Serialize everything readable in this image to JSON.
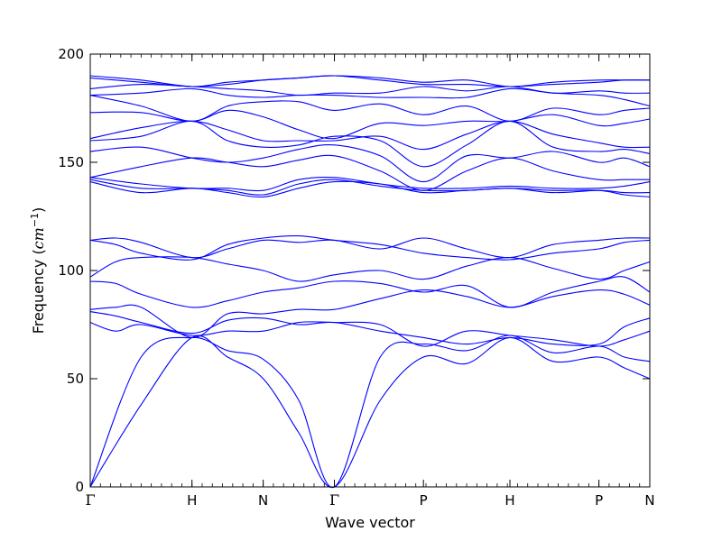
{
  "chart_data": {
    "type": "line",
    "title": "",
    "xlabel": "Wave vector",
    "ylabel": "Frequency",
    "ylabel_unit_base": "cm",
    "ylabel_unit_exp": "−1",
    "ylim": [
      0,
      200
    ],
    "yticks": [
      0,
      50,
      100,
      150,
      200
    ],
    "xlim": [
      0,
      11
    ],
    "x_ticks": [
      {
        "x": 0,
        "label": "Γ"
      },
      {
        "x": 2,
        "label": "H"
      },
      {
        "x": 3.4,
        "label": "N"
      },
      {
        "x": 4.8,
        "label": "Γ"
      },
      {
        "x": 6.55,
        "label": "P"
      },
      {
        "x": 8.25,
        "label": "H"
      },
      {
        "x": 10,
        "label": "P"
      },
      {
        "x": 11,
        "label": "N"
      }
    ],
    "grid": false,
    "legend": "none",
    "line_color": "#0000ff",
    "series": [
      {
        "x": [
          0,
          1,
          2,
          2.7,
          3.4,
          4.1,
          4.8,
          5.7,
          6.55,
          7.4,
          8.25,
          9.1,
          10,
          10.5,
          11
        ],
        "values": [
          0,
          38,
          69,
          60,
          50,
          25,
          0,
          40,
          60,
          57,
          69,
          58,
          60,
          55,
          50
        ]
      },
      {
        "x": [
          0,
          1,
          2,
          2.7,
          3.4,
          4.1,
          4.8,
          5.7,
          6.55,
          7.4,
          8.25,
          9.1,
          10,
          10.5,
          11
        ],
        "values": [
          0,
          60,
          69,
          63,
          59,
          40,
          0,
          60,
          66,
          63,
          70,
          62,
          65,
          60,
          58
        ]
      },
      {
        "x": [
          0,
          0.5,
          1,
          2,
          2.7,
          3.4,
          4.1,
          4.8,
          5.7,
          6.55,
          7.4,
          8.25,
          9.1,
          10,
          10.5,
          11
        ],
        "values": [
          76,
          72,
          75,
          70,
          72,
          72,
          76,
          76,
          75,
          65,
          72,
          70,
          68,
          65,
          68,
          72
        ]
      },
      {
        "x": [
          0,
          0.5,
          1,
          2,
          2.7,
          3.4,
          4.1,
          4.8,
          5.7,
          6.55,
          7.4,
          8.25,
          9.1,
          10,
          10.5,
          11
        ],
        "values": [
          81,
          79,
          76,
          71,
          77,
          78,
          75,
          76,
          72,
          69,
          66,
          69,
          66,
          66,
          74,
          78
        ]
      },
      {
        "x": [
          0,
          0.5,
          1,
          2,
          2.7,
          3.4,
          4.1,
          4.8,
          5.7,
          6.55,
          7.4,
          8.25,
          9.1,
          10,
          10.5,
          11
        ],
        "values": [
          82,
          83,
          83,
          69,
          80,
          80,
          82,
          82,
          87,
          91,
          88,
          83,
          88,
          91,
          89,
          84
        ]
      },
      {
        "x": [
          0,
          0.5,
          1,
          2,
          2.7,
          3.4,
          4.1,
          4.8,
          5.7,
          6.55,
          7.4,
          8.25,
          9.1,
          10,
          10.5,
          11
        ],
        "values": [
          95,
          94,
          89,
          83,
          86,
          90,
          92,
          95,
          94,
          90,
          93,
          83,
          90,
          95,
          97,
          90
        ]
      },
      {
        "x": [
          0,
          0.5,
          1,
          2,
          2.7,
          3.4,
          4.1,
          4.8,
          5.7,
          6.55,
          7.4,
          8.25,
          9.1,
          10,
          10.5,
          11
        ],
        "values": [
          97,
          104,
          106,
          106,
          103,
          100,
          95,
          98,
          100,
          96,
          102,
          106,
          101,
          96,
          100,
          104
        ]
      },
      {
        "x": [
          0,
          0.5,
          1,
          2,
          2.7,
          3.4,
          4.1,
          4.8,
          5.7,
          6.55,
          7.4,
          8.25,
          9.1,
          10,
          10.5,
          11
        ],
        "values": [
          114,
          112,
          108,
          105,
          112,
          115,
          116,
          114,
          112,
          108,
          106,
          105,
          108,
          110,
          113,
          114
        ]
      },
      {
        "x": [
          0,
          0.5,
          1,
          2,
          2.7,
          3.4,
          4.1,
          4.8,
          5.7,
          6.55,
          7.4,
          8.25,
          9.1,
          10,
          10.5,
          11
        ],
        "values": [
          114,
          115,
          113,
          106,
          110,
          114,
          113,
          114,
          110,
          115,
          110,
          106,
          112,
          114,
          115,
          115
        ]
      },
      {
        "x": [
          0,
          1,
          2,
          2.7,
          3.4,
          4.1,
          4.8,
          5.7,
          6.55,
          7.4,
          8.25,
          9.1,
          10,
          10.5,
          11
        ],
        "values": [
          141,
          136,
          138,
          136,
          134,
          138,
          141,
          140,
          136,
          137,
          138,
          137,
          137,
          135,
          134
        ]
      },
      {
        "x": [
          0,
          1,
          2,
          2.7,
          3.4,
          4.1,
          4.8,
          5.7,
          6.55,
          7.4,
          8.25,
          9.1,
          10,
          10.5,
          11
        ],
        "values": [
          142,
          138,
          138,
          137,
          135,
          140,
          142,
          139,
          137,
          137,
          138,
          136,
          137,
          136,
          136
        ]
      },
      {
        "x": [
          0,
          1,
          2,
          2.7,
          3.4,
          4.1,
          4.8,
          5.7,
          6.55,
          7.4,
          8.25,
          9.1,
          10,
          10.5,
          11
        ],
        "values": [
          143,
          140,
          138,
          138,
          137,
          142,
          143,
          140,
          138,
          138,
          139,
          138,
          138,
          139,
          141
        ]
      },
      {
        "x": [
          0,
          1,
          2,
          2.7,
          3.4,
          4.1,
          4.8,
          5.7,
          6.55,
          7.4,
          8.25,
          9.1,
          10,
          10.5,
          11
        ],
        "values": [
          143,
          148,
          152,
          150,
          148,
          151,
          153,
          146,
          137,
          146,
          152,
          146,
          142,
          142,
          142
        ]
      },
      {
        "x": [
          0,
          1,
          2,
          2.7,
          3.4,
          4.1,
          4.8,
          5.7,
          6.55,
          7.4,
          8.25,
          9.1,
          10,
          10.5,
          11
        ],
        "values": [
          155,
          157,
          152,
          150,
          152,
          156,
          158,
          153,
          141,
          153,
          152,
          155,
          150,
          152,
          148
        ]
      },
      {
        "x": [
          0,
          1,
          2,
          2.7,
          3.4,
          4.1,
          4.8,
          5.7,
          6.55,
          7.4,
          8.25,
          9.1,
          10,
          10.5,
          11
        ],
        "values": [
          160,
          162,
          169,
          160,
          157,
          158,
          162,
          160,
          148,
          158,
          169,
          157,
          155,
          156,
          154
        ]
      },
      {
        "x": [
          0,
          1,
          2,
          2.7,
          3.4,
          4.1,
          4.8,
          5.7,
          6.55,
          7.4,
          8.25,
          9.1,
          10,
          10.5,
          11
        ],
        "values": [
          161,
          166,
          169,
          165,
          160,
          160,
          160,
          162,
          156,
          163,
          169,
          163,
          159,
          157,
          157
        ]
      },
      {
        "x": [
          0,
          1,
          2,
          2.7,
          3.4,
          4.1,
          4.8,
          5.7,
          6.55,
          7.4,
          8.25,
          9.1,
          10,
          10.5,
          11
        ],
        "values": [
          173,
          173,
          169,
          174,
          171,
          165,
          161,
          168,
          167,
          169,
          169,
          172,
          167,
          168,
          170
        ]
      },
      {
        "x": [
          0,
          1,
          2,
          2.7,
          3.4,
          4.1,
          4.8,
          5.7,
          6.55,
          7.4,
          8.25,
          9.1,
          10,
          10.5,
          11
        ],
        "values": [
          181,
          176,
          169,
          176,
          178,
          178,
          174,
          177,
          172,
          176,
          169,
          175,
          172,
          174,
          175
        ]
      },
      {
        "x": [
          0,
          1,
          2,
          2.7,
          3.4,
          4.1,
          4.8,
          5.7,
          6.55,
          7.4,
          8.25,
          9.1,
          10,
          10.5,
          11
        ],
        "values": [
          181,
          182,
          184,
          181,
          180,
          181,
          181,
          180,
          180,
          180,
          184,
          182,
          181,
          179,
          176
        ]
      },
      {
        "x": [
          0,
          1,
          2,
          2.7,
          3.4,
          4.1,
          4.8,
          5.7,
          6.55,
          7.4,
          8.25,
          9.1,
          10,
          10.5,
          11
        ],
        "values": [
          184,
          186,
          185,
          184,
          183,
          181,
          182,
          182,
          185,
          183,
          185,
          182,
          183,
          182,
          182
        ]
      },
      {
        "x": [
          0,
          1,
          2,
          2.7,
          3.4,
          4.1,
          4.8,
          5.7,
          6.55,
          7.4,
          8.25,
          9.1,
          10,
          10.5,
          11
        ],
        "values": [
          189,
          187,
          185,
          186,
          188,
          189,
          190,
          188,
          186,
          186,
          185,
          186,
          187,
          188,
          188
        ]
      },
      {
        "x": [
          0,
          1,
          2,
          2.7,
          3.4,
          4.1,
          4.8,
          5.7,
          6.55,
          7.4,
          8.25,
          9.1,
          10,
          10.5,
          11
        ],
        "values": [
          190,
          188,
          185,
          187,
          188,
          189,
          190,
          189,
          187,
          188,
          185,
          187,
          188,
          188,
          188
        ]
      }
    ]
  }
}
